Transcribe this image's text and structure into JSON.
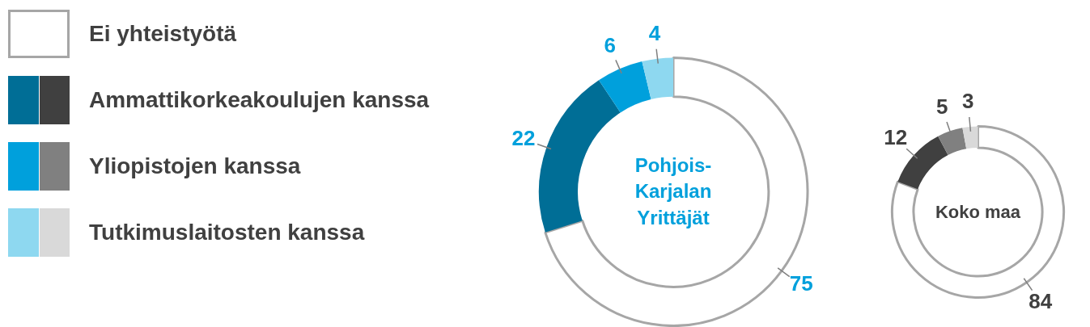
{
  "chart_data": [
    {
      "type": "donut",
      "title": "Pohjois-Karjalan Yrittäjät",
      "categories": [
        "Ei yhteistyötä",
        "Ammattikorkeakoulujen kanssa",
        "Yliopistojen kanssa",
        "Tutkimuslaitosten kanssa"
      ],
      "values": [
        75,
        22,
        6,
        4
      ],
      "colors": [
        "#ffffff",
        "#006e96",
        "#00a0dc",
        "#8ed8f0"
      ],
      "data_labels": true,
      "legend": "left"
    },
    {
      "type": "donut",
      "title": "Koko maa",
      "categories": [
        null,
        null,
        null,
        null
      ],
      "values": [
        84,
        12,
        5,
        3
      ],
      "colors": [
        "#ffffff",
        "#404040",
        "#808080",
        "#d9d9d9"
      ],
      "data_labels": true
    }
  ]
}
